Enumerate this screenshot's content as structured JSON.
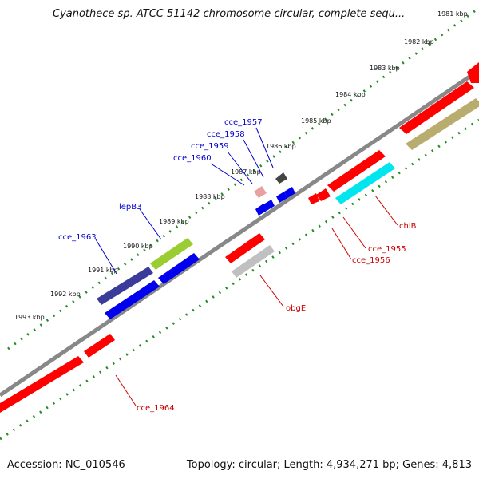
{
  "title": "Cyanothece sp. ATCC 51142 chromosome circular, complete sequ...",
  "footer": {
    "accession": "Accession: NC_010546",
    "summary": "Topology: circular; Length: 4,934,271 bp; Genes: 4,813"
  },
  "colors": {
    "genome_line": "#888888",
    "tick": "#228B22",
    "label_blue": "#0000cc",
    "label_red": "#cc0000"
  },
  "kbp_labels": [
    "1981 kbp",
    "1982 kbp",
    "1983 kbp",
    "1984 kbp",
    "1985 kbp",
    "1986 kbp",
    "1987 kbp",
    "1988 kbp",
    "1989 kbp",
    "1990 kbp",
    "1991 kbp",
    "1992 kbp",
    "1993 kbp"
  ],
  "gene_labels_blue": [
    "cce_1957",
    "cce_1958",
    "cce_1959",
    "cce_1960",
    "lepB3",
    "cce_1963"
  ],
  "gene_labels_red": [
    "chlB",
    "cce_1955",
    "cce_1956",
    "obgE",
    "cce_1964"
  ]
}
